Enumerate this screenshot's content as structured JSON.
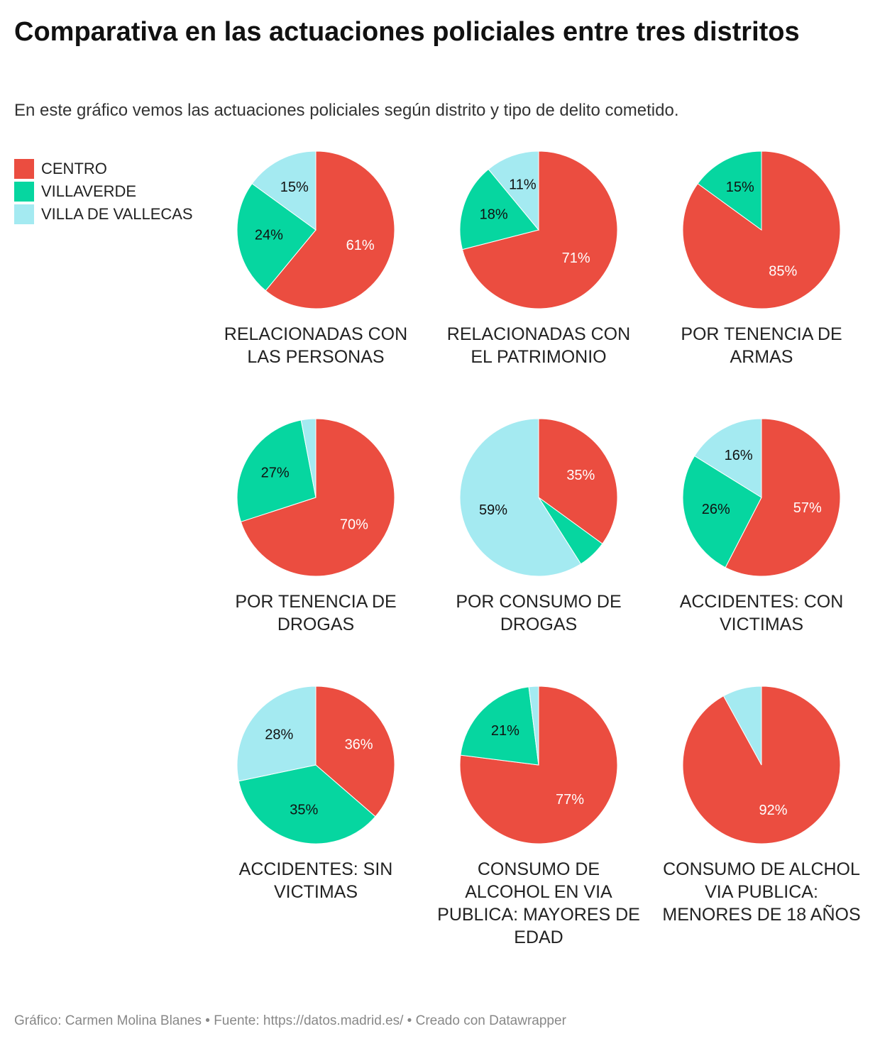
{
  "title": "Comparativa en las actuaciones policiales entre tres distritos",
  "subtitle": "En este gráfico vemos las actuaciones policiales según distrito y tipo de delito cometido.",
  "legend": [
    {
      "label": "CENTRO",
      "color": "#eb4d40"
    },
    {
      "label": "VILLAVERDE",
      "color": "#06d6a0"
    },
    {
      "label": "VILLA DE VALLECAS",
      "color": "#a4eaf1"
    }
  ],
  "footer": "Gráfico: Carmen Molina Blanes • Fuente: https://datos.madrid.es/ • Creado con Datawrapper",
  "chart_data": {
    "type": "pie",
    "series_names": [
      "CENTRO",
      "VILLAVERDE",
      "VILLA DE VALLECAS"
    ],
    "colors": [
      "#eb4d40",
      "#06d6a0",
      "#a4eaf1"
    ],
    "pies": [
      {
        "title": "RELACIONADAS CON LAS PERSONAS",
        "values": [
          61,
          24,
          15
        ]
      },
      {
        "title": "RELACIONADAS CON EL PATRIMONIO",
        "values": [
          71,
          18,
          11
        ]
      },
      {
        "title": "POR TENENCIA DE ARMAS",
        "values": [
          85,
          15,
          0
        ]
      },
      {
        "title": "POR TENENCIA DE DROGAS",
        "values": [
          70,
          27,
          3
        ]
      },
      {
        "title": "POR CONSUMO DE DROGAS",
        "values": [
          35,
          6,
          59
        ]
      },
      {
        "title": "ACCIDENTES: CON VICTIMAS",
        "values": [
          57,
          26,
          16
        ]
      },
      {
        "title": "ACCIDENTES: SIN VICTIMAS",
        "values": [
          36,
          35,
          28
        ]
      },
      {
        "title": "CONSUMO DE ALCOHOL EN VIA PUBLICA: MAYORES DE EDAD",
        "values": [
          77,
          21,
          2
        ]
      },
      {
        "title": "CONSUMO DE ALCHOL VIA PUBLICA: MENORES DE 18 AÑOS",
        "values": [
          92,
          0,
          8
        ]
      }
    ]
  }
}
